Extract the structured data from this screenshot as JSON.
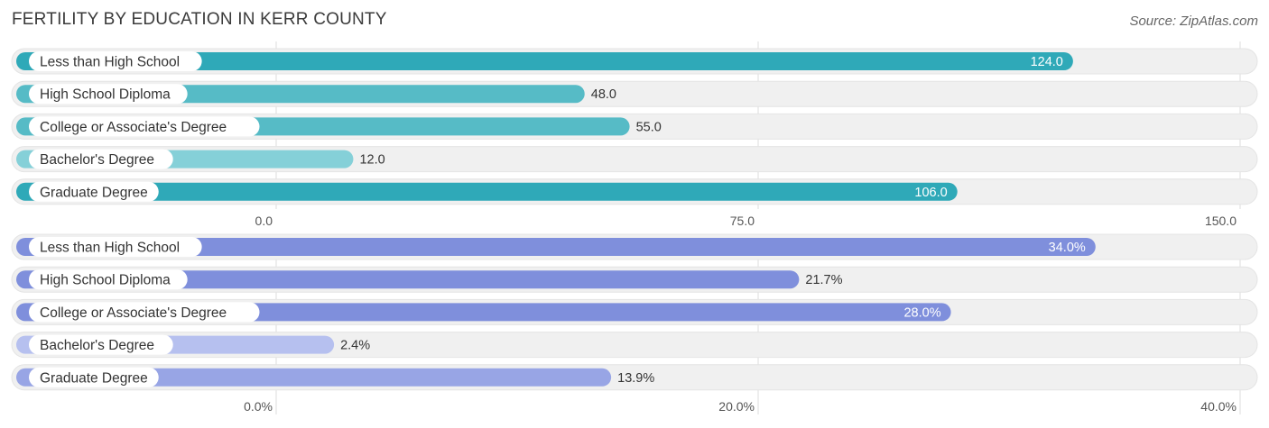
{
  "title": "FERTILITY BY EDUCATION IN KERR COUNTY",
  "source": "Source: ZipAtlas.com",
  "colors": {
    "teal_strong": "#2fa9b8",
    "teal_light": "#85d0d8",
    "blue_strong": "#7f8fdc",
    "blue_light": "#b6c0ef",
    "track": "#f0f0f0",
    "grid": "#dddddd"
  },
  "chart_data": [
    {
      "type": "bar",
      "orientation": "horizontal",
      "categories": [
        "Less than High School",
        "High School Diploma",
        "College or Associate's Degree",
        "Bachelor's Degree",
        "Graduate Degree"
      ],
      "values": [
        124.0,
        48.0,
        55.0,
        12.0,
        106.0
      ],
      "value_labels": [
        "124.0",
        "48.0",
        "55.0",
        "12.0",
        "106.0"
      ],
      "xlim": [
        0,
        150
      ],
      "ticks": [
        0,
        75,
        150
      ],
      "tick_labels": [
        "0.0",
        "75.0",
        "150.0"
      ],
      "palette": "teal",
      "grid": true
    },
    {
      "type": "bar",
      "orientation": "horizontal",
      "categories": [
        "Less than High School",
        "High School Diploma",
        "College or Associate's Degree",
        "Bachelor's Degree",
        "Graduate Degree"
      ],
      "values": [
        34.0,
        21.7,
        28.0,
        2.4,
        13.9
      ],
      "value_labels": [
        "34.0%",
        "21.7%",
        "28.0%",
        "2.4%",
        "13.9%"
      ],
      "xlim": [
        0,
        40
      ],
      "ticks": [
        0,
        20,
        40
      ],
      "tick_labels": [
        "0.0%",
        "20.0%",
        "40.0%"
      ],
      "palette": "blue",
      "grid": true
    }
  ]
}
